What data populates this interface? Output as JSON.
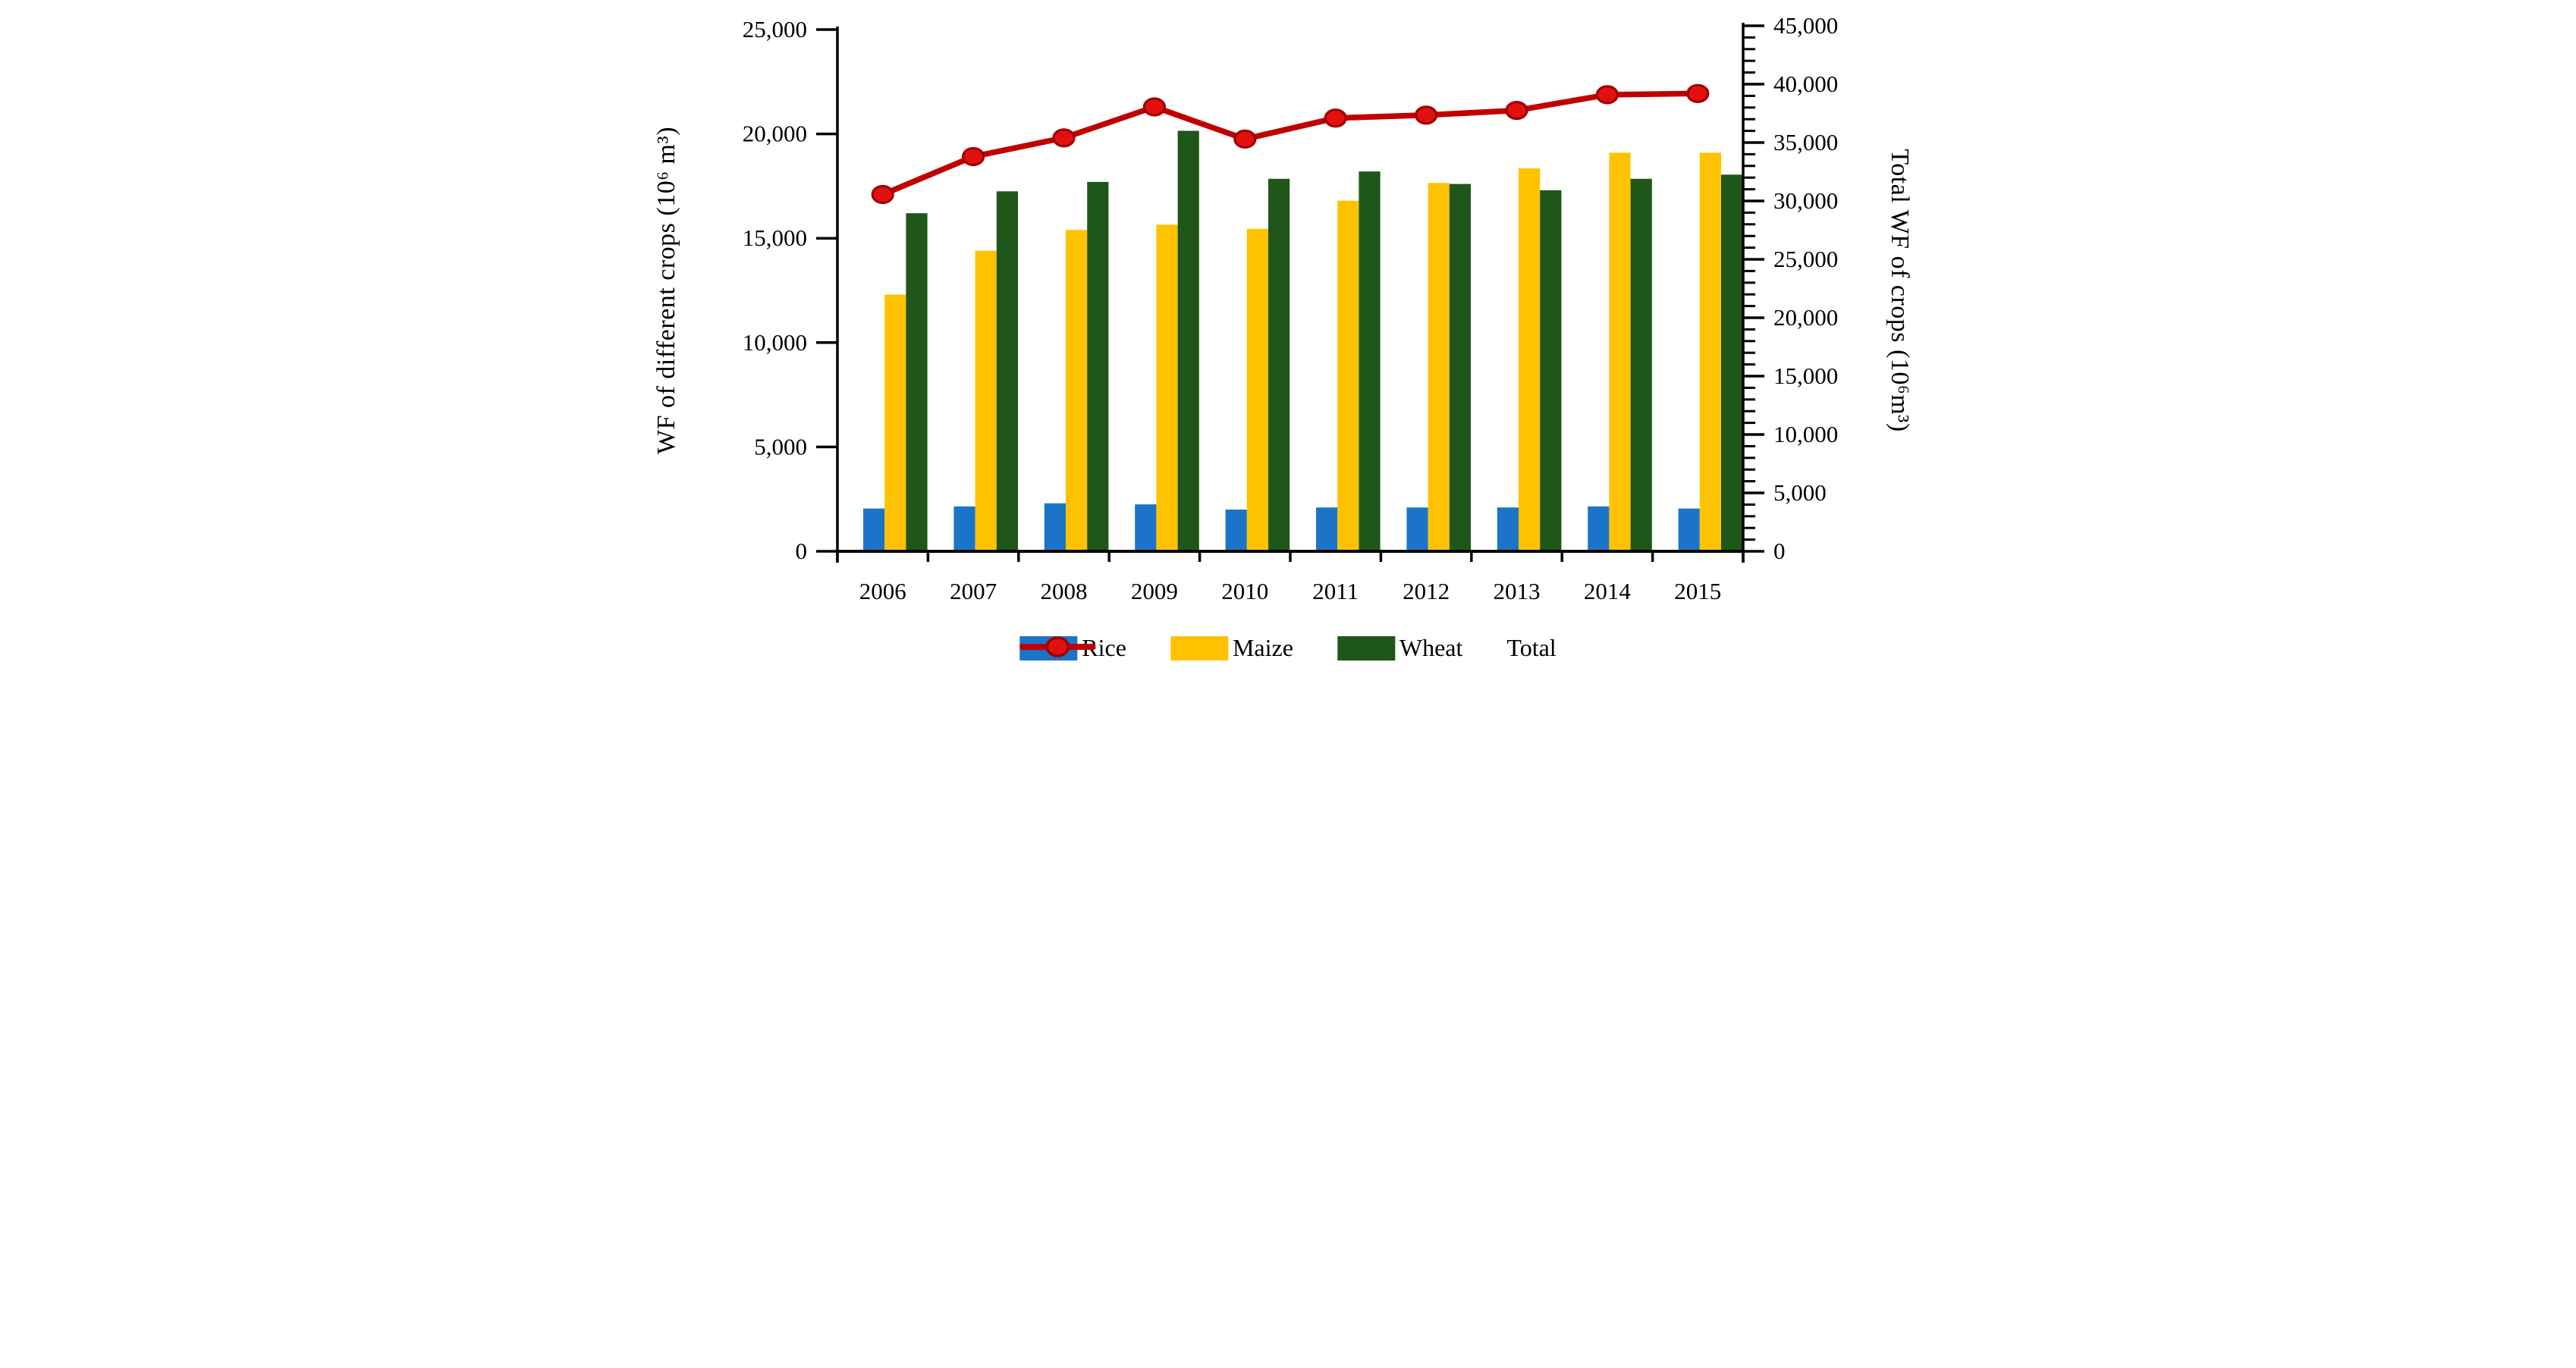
{
  "chart_data": {
    "type": "combo",
    "title": "",
    "categories": [
      "2006",
      "2007",
      "2008",
      "2009",
      "2010",
      "2011",
      "2012",
      "2013",
      "2014",
      "2015"
    ],
    "series": [
      {
        "name": "Rice",
        "type": "bar",
        "axis": "left",
        "color": "#1C74C9",
        "values": [
          2050,
          2150,
          2300,
          2250,
          2000,
          2100,
          2100,
          2100,
          2150,
          2050
        ]
      },
      {
        "name": "Maize",
        "type": "bar",
        "axis": "left",
        "color": "#FFC200",
        "values": [
          12300,
          14400,
          15400,
          15650,
          15450,
          16800,
          17650,
          18350,
          19100,
          19100
        ]
      },
      {
        "name": "Wheat",
        "type": "bar",
        "axis": "left",
        "color": "#1F5619",
        "values": [
          16200,
          17250,
          17700,
          20150,
          17850,
          18200,
          17600,
          17300,
          17850,
          18050
        ]
      },
      {
        "name": "Total",
        "type": "line",
        "axis": "right",
        "color": "#C00000",
        "marker_fill": "#E21111",
        "marker_stroke": "#A00000",
        "values": [
          30550,
          33800,
          35400,
          38050,
          35300,
          37100,
          37350,
          37750,
          39100,
          39200
        ]
      }
    ],
    "left_axis": {
      "label": "WF of different crops (10⁶ m³)",
      "min": 0,
      "max": 25000,
      "step": 5000,
      "tick_labels": [
        "0",
        "5,000",
        "10,000",
        "15,000",
        "20,000",
        "25,000"
      ]
    },
    "right_axis": {
      "label": "Total WF of crops (10⁶m³)",
      "min": 0,
      "max": 45000,
      "step": 5000,
      "minor_step": 1000,
      "tick_labels": [
        "0",
        "5,000",
        "10,000",
        "15,000",
        "20,000",
        "25,000",
        "30,000",
        "35,000",
        "40,000",
        "45,000"
      ]
    },
    "x_axis": {
      "tick_labels": [
        "2006",
        "2007",
        "2008",
        "2009",
        "2010",
        "2011",
        "2012",
        "2013",
        "2014",
        "2015"
      ]
    },
    "legend": {
      "position": "bottom",
      "items": [
        "Rice",
        "Maize",
        "Wheat",
        "Total"
      ]
    },
    "grid": false,
    "axis_color": "#000000",
    "background": "#FFFFFF"
  }
}
